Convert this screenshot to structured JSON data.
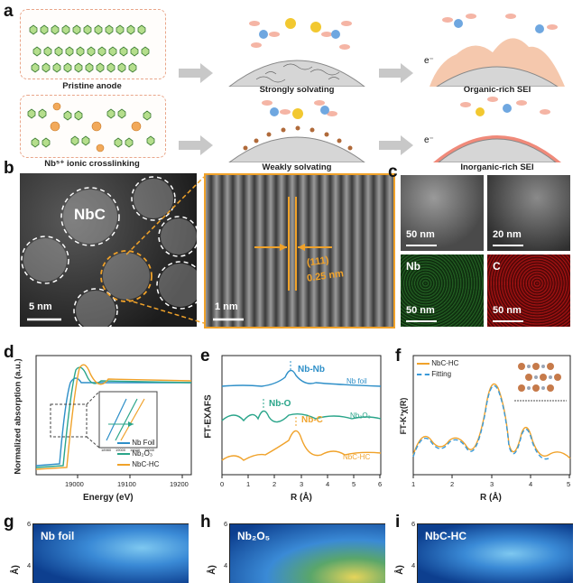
{
  "panels": {
    "a": {
      "label": "a",
      "captions": {
        "pristine": "Pristine anode",
        "strong": "Strongly solvating",
        "organic": "Organic-rich SEI",
        "crosslink": "Nb⁵⁺ ionic crosslinking",
        "weak": "Weakly solvating",
        "inorganic": "Inorganic-rich SEI"
      },
      "electron": "e⁻"
    },
    "b": {
      "label": "b",
      "nbc": "NbC",
      "scale_left": "5 nm",
      "scale_right": "1 nm",
      "plane": "(111)",
      "spacing": "0.25 nm"
    },
    "c": {
      "label": "c",
      "scale1": "50 nm",
      "scale2": "20 nm",
      "scale3": "50 nm",
      "scale4": "50 nm",
      "nb_map": "Nb",
      "c_map": "C"
    },
    "d": {
      "label": "d",
      "ylabel": "Normalized absorption (a.u.)",
      "xlabel": "Energy (eV)",
      "xticks": [
        "19000",
        "19100",
        "19200"
      ],
      "legend": [
        "Nb Foil",
        "Nb₂O₃",
        "NbC-HC"
      ],
      "inset_ticks": [
        "18980",
        "19000",
        "19020",
        "19040"
      ]
    },
    "e": {
      "label": "e",
      "ylabel": "FT-EXAFS",
      "xlabel": "R (Å)",
      "xticks": [
        "0",
        "1",
        "2",
        "3",
        "4",
        "5",
        "6"
      ],
      "peaks": [
        "Nb-Nb",
        "Nb-O",
        "Nb-C"
      ],
      "curves": [
        "Nb foil",
        "Nb₂O₃",
        "NbC-HC"
      ]
    },
    "f": {
      "label": "f",
      "ylabel": "FT-K³χ(R)",
      "xlabel": "R (Å)",
      "xticks": [
        "1",
        "2",
        "3",
        "4",
        "5"
      ],
      "legend": [
        "NbC-HC",
        "Fitting"
      ]
    },
    "g": {
      "label": "g",
      "title": "Nb foil",
      "yticks": [
        "6",
        "4"
      ],
      "ylabel": "Å)"
    },
    "h": {
      "label": "h",
      "title": "Nb₂O₅",
      "yticks": [
        "6",
        "4"
      ],
      "ylabel": "Å)"
    },
    "i": {
      "label": "i",
      "title": "NbC-HC",
      "yticks": [
        "6",
        "4"
      ],
      "ylabel": "Å)"
    }
  },
  "colors": {
    "nb_foil": "#2e8fc8",
    "nb2o3": "#2aa58a",
    "nbc_hc": "#f0a22a",
    "fitting": "#3a9ad9",
    "accent_orange": "#e8902a",
    "wt_dark": "#0d3f8f"
  }
}
